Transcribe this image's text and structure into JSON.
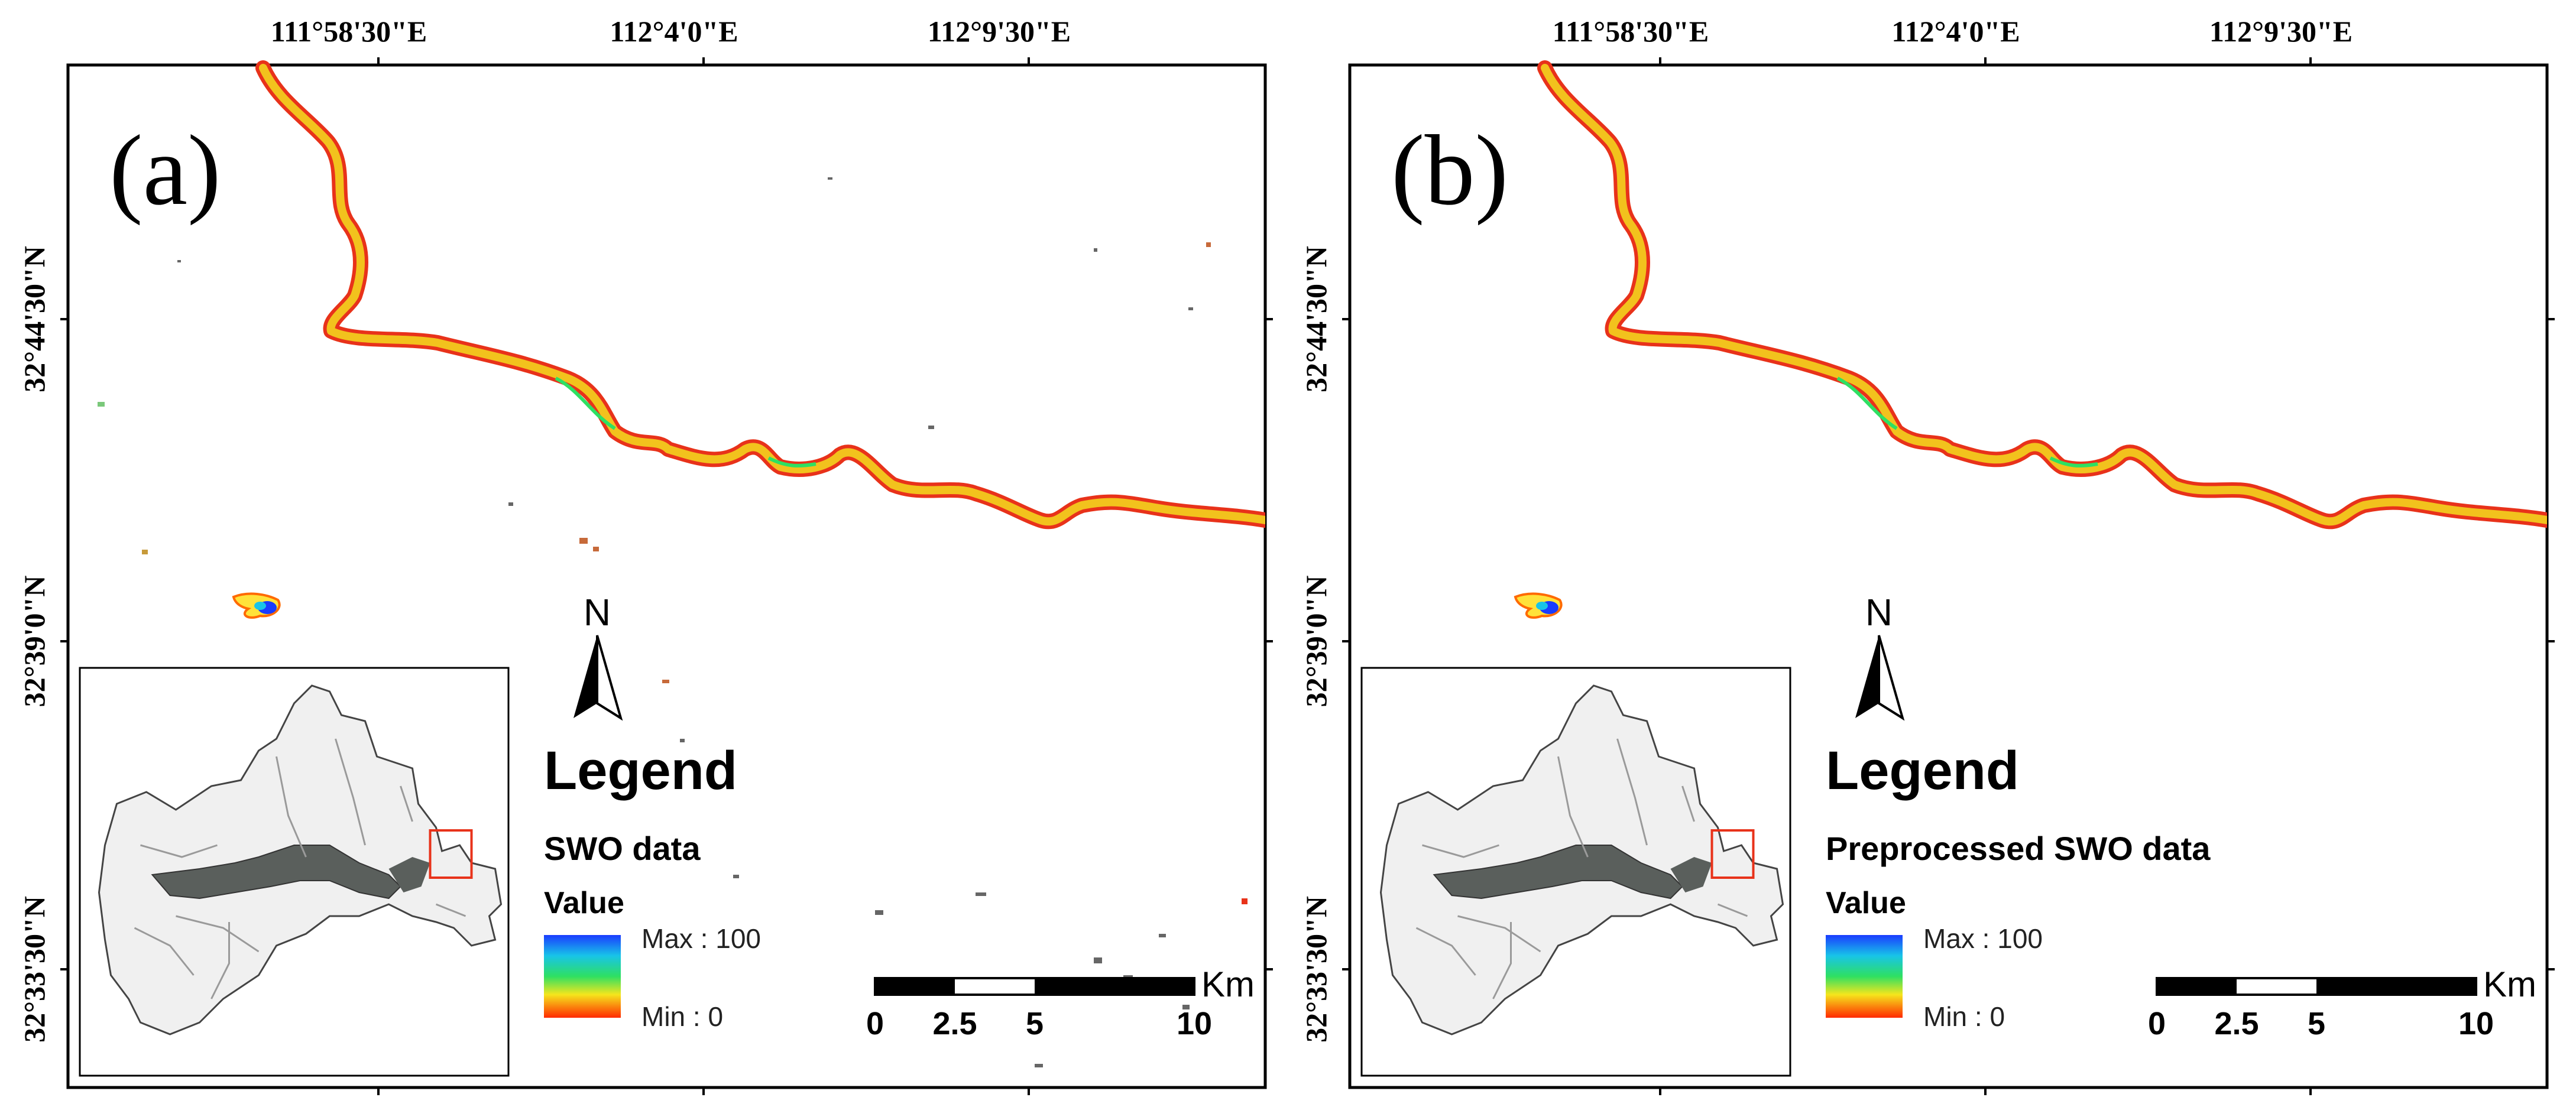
{
  "lon_labels": [
    "111°58'30\"E",
    "112°4'0\"E",
    "112°9'30\"E"
  ],
  "lat_labels": [
    "32°44'30\"N",
    "32°39'0\"N",
    "32°33'30\"N"
  ],
  "colors": {
    "ramp_top": "#1a3cff",
    "ramp_mid1": "#18c4e8",
    "ramp_mid2": "#2ee062",
    "ramp_mid3": "#f5e61c",
    "ramp_bottom": "#ff2a00",
    "river_fill": "#f2c21d",
    "river_edge": "#e8321a",
    "basin_fill": "#f0f0f0",
    "lake_fill": "#5a5f5c"
  },
  "panels": [
    {
      "label": "(a)",
      "north": "N",
      "legend": {
        "title": "Legend",
        "dataset": "SWO data",
        "value_heading": "Value",
        "max_label": "Max : 100",
        "min_label": "Min : 0"
      },
      "scale_bar": {
        "ticks": [
          "0",
          "2.5",
          "5",
          "10"
        ],
        "unit": "Km"
      }
    },
    {
      "label": "(b)",
      "north": "N",
      "legend": {
        "title": "Legend",
        "dataset": "Preprocessed SWO data",
        "value_heading": "Value",
        "max_label": "Max : 100",
        "min_label": "Min : 0"
      },
      "scale_bar": {
        "ticks": [
          "0",
          "2.5",
          "5",
          "10"
        ],
        "unit": "Km"
      }
    }
  ]
}
